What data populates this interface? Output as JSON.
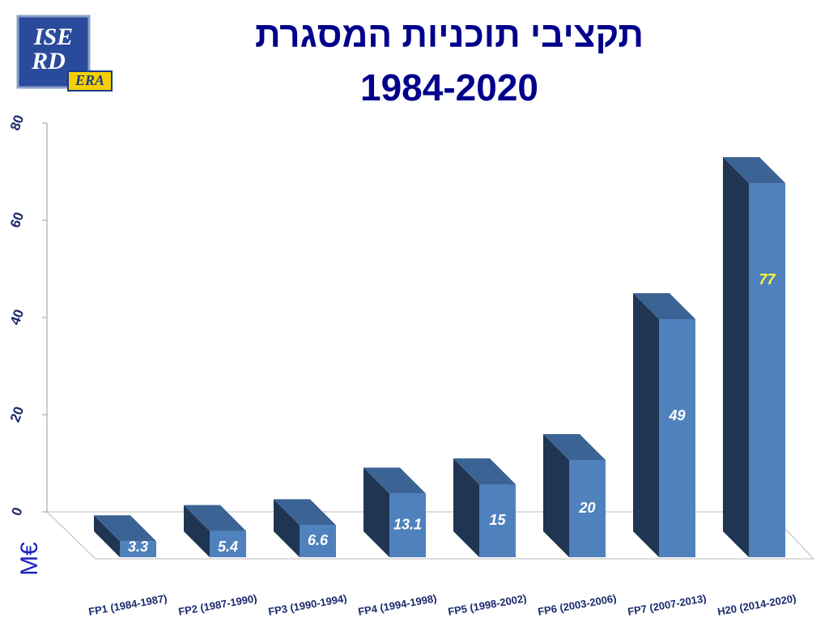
{
  "logo": {
    "line1": "ISE",
    "line2": "RD",
    "badge": "ERA"
  },
  "chart_data": {
    "type": "bar3d",
    "title": "תקציבי תוכניות המסגרת",
    "subtitle": "1984-2020",
    "y_label": "M€",
    "categories": [
      "FP1 (1984-1987)",
      "FP2 (1987-1990)",
      "FP3 (1990-1994)",
      "FP4 (1994-1998)",
      "FP5 (1998-2002)",
      "FP6 (2003-2006)",
      "FP7 (2007-2013)",
      "H20 (2014-2020)"
    ],
    "values": [
      3.3,
      5.4,
      6.6,
      13.1,
      15,
      20,
      49,
      77
    ],
    "color": "#4f81bd",
    "side_color": "#1f3552",
    "top_color": "#3b6494",
    "value_label_colors": [
      "#ffffff",
      "#ffffff",
      "#ffffff",
      "#ffffff",
      "#ffffff",
      "#ffffff",
      "#ffffff",
      "#ffff33"
    ],
    "ylim": [
      0,
      80
    ],
    "yticks": [
      0,
      20,
      40,
      60,
      80
    ]
  }
}
